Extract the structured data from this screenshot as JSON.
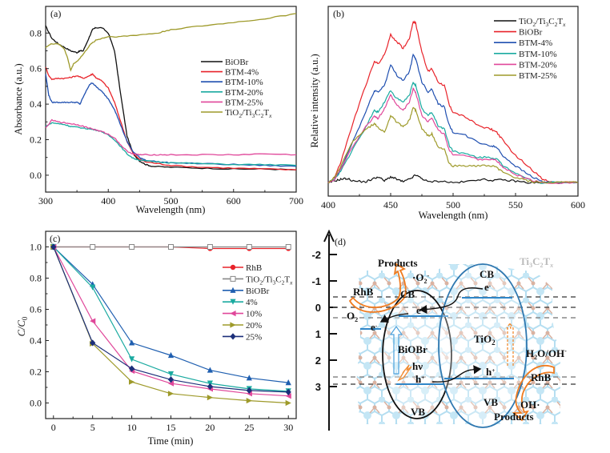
{
  "chart_data": [
    {
      "panel": "(a)",
      "type": "line",
      "xlabel": "Wavelength (nm)",
      "ylabel": "Absorbance (a.u.)",
      "xlim": [
        300,
        700
      ],
      "ylim": [
        -0.095,
        0.95
      ],
      "xticks": [
        300,
        400,
        500,
        600,
        700
      ],
      "yticks": [
        0.0,
        0.2,
        0.4,
        0.6,
        0.8
      ],
      "ytick_labels": [
        "0.0",
        "0.2",
        "0.4",
        "0.6",
        "0.8"
      ],
      "legend_position": "center-right",
      "series": [
        {
          "name": "BiOBr",
          "color": "#111111",
          "x": [
            300,
            310,
            320,
            330,
            340,
            350,
            355,
            360,
            370,
            375,
            380,
            390,
            400,
            410,
            420,
            430,
            440,
            450,
            460,
            470,
            500,
            550,
            600,
            650,
            700
          ],
          "y": [
            0.84,
            0.77,
            0.74,
            0.72,
            0.7,
            0.69,
            0.7,
            0.7,
            0.78,
            0.82,
            0.83,
            0.83,
            0.8,
            0.7,
            0.45,
            0.22,
            0.12,
            0.08,
            0.06,
            0.05,
            0.045,
            0.04,
            0.035,
            0.035,
            0.03
          ]
        },
        {
          "name": "BTM-4%",
          "color": "#e8232a",
          "x": [
            300,
            305,
            310,
            320,
            330,
            340,
            350,
            360,
            370,
            375,
            380,
            390,
            400,
            410,
            420,
            430,
            440,
            450,
            460,
            480,
            500,
            550,
            600,
            650,
            700
          ],
          "y": [
            0.61,
            0.56,
            0.54,
            0.545,
            0.545,
            0.55,
            0.56,
            0.545,
            0.56,
            0.57,
            0.55,
            0.53,
            0.49,
            0.41,
            0.3,
            0.19,
            0.12,
            0.09,
            0.075,
            0.065,
            0.055,
            0.045,
            0.04,
            0.035,
            0.03
          ]
        },
        {
          "name": "BTM-10%",
          "color": "#1f4fb0",
          "x": [
            300,
            305,
            310,
            320,
            330,
            340,
            350,
            355,
            360,
            370,
            375,
            380,
            390,
            400,
            410,
            420,
            430,
            440,
            450,
            460,
            480,
            500,
            550,
            600,
            650,
            700
          ],
          "y": [
            0.57,
            0.45,
            0.41,
            0.41,
            0.41,
            0.41,
            0.41,
            0.4,
            0.44,
            0.51,
            0.52,
            0.5,
            0.47,
            0.43,
            0.37,
            0.28,
            0.19,
            0.13,
            0.1,
            0.085,
            0.075,
            0.07,
            0.065,
            0.06,
            0.055,
            0.05
          ]
        },
        {
          "name": "BTM-20%",
          "color": "#1aaaa0",
          "x": [
            300,
            310,
            320,
            330,
            340,
            350,
            360,
            370,
            380,
            390,
            400,
            410,
            420,
            430,
            440,
            450,
            460,
            480,
            500,
            550,
            600,
            650,
            700
          ],
          "y": [
            0.275,
            0.295,
            0.29,
            0.285,
            0.275,
            0.27,
            0.265,
            0.26,
            0.255,
            0.245,
            0.225,
            0.2,
            0.16,
            0.12,
            0.095,
            0.085,
            0.08,
            0.075,
            0.07,
            0.065,
            0.06,
            0.06,
            0.055
          ]
        },
        {
          "name": "BTM-25%",
          "color": "#e0479a",
          "x": [
            300,
            310,
            320,
            330,
            340,
            350,
            360,
            370,
            380,
            390,
            400,
            410,
            420,
            430,
            440,
            450,
            460,
            480,
            500,
            550,
            600,
            650,
            700
          ],
          "y": [
            0.265,
            0.31,
            0.3,
            0.295,
            0.29,
            0.285,
            0.275,
            0.265,
            0.255,
            0.245,
            0.23,
            0.21,
            0.17,
            0.135,
            0.12,
            0.115,
            0.115,
            0.115,
            0.115,
            0.115,
            0.115,
            0.12,
            0.115
          ]
        },
        {
          "name": "TiO2/Ti3C2Tx",
          "color": "#9e9a2a",
          "x": [
            300,
            310,
            320,
            330,
            335,
            340,
            345,
            350,
            360,
            370,
            380,
            390,
            400,
            420,
            450,
            480,
            500,
            550,
            600,
            650,
            700
          ],
          "y": [
            0.72,
            0.74,
            0.74,
            0.71,
            0.66,
            0.59,
            0.63,
            0.64,
            0.68,
            0.73,
            0.76,
            0.77,
            0.78,
            0.78,
            0.79,
            0.8,
            0.82,
            0.84,
            0.86,
            0.88,
            0.91
          ]
        }
      ]
    },
    {
      "panel": "(b)",
      "type": "line",
      "xlabel": "Wavelength (nm)",
      "ylabel": "Relative intensity (a.u.)",
      "xlim": [
        400,
        600
      ],
      "ylim": [
        -0.08,
        1.05
      ],
      "xticks": [
        400,
        450,
        500,
        550,
        600
      ],
      "yticks": [],
      "legend_position": "top-right",
      "series": [
        {
          "name": "TiO2/Ti3C2Tx",
          "color": "#111111",
          "x": [
            400,
            405,
            410,
            415,
            420,
            430,
            435,
            440,
            445,
            450,
            455,
            460,
            465,
            470,
            475,
            480,
            490,
            500,
            510,
            520,
            530,
            540,
            550,
            560,
            570,
            580,
            590,
            600
          ],
          "y": [
            0.0,
            0.01,
            0.02,
            0.025,
            0.01,
            0.005,
            0.02,
            0.035,
            0.01,
            0.035,
            0.02,
            0.005,
            0.02,
            0.045,
            0.025,
            0.005,
            0.01,
            0.0,
            0.005,
            0.02,
            0.015,
            0.015,
            0.01,
            0.0,
            0.0,
            0.0,
            0.0,
            0.0
          ]
        },
        {
          "name": "BiOBr",
          "color": "#e8232a",
          "x": [
            400,
            405,
            410,
            420,
            430,
            437,
            440,
            445,
            450,
            455,
            460,
            465,
            468,
            470,
            475,
            480,
            483,
            488,
            493,
            497,
            500,
            510,
            520,
            530,
            535,
            540,
            550,
            560,
            570,
            575,
            580,
            600
          ],
          "y": [
            0.0,
            0.03,
            0.12,
            0.36,
            0.58,
            0.72,
            0.71,
            0.76,
            0.88,
            0.84,
            0.8,
            0.86,
            0.96,
            0.95,
            0.78,
            0.66,
            0.68,
            0.6,
            0.58,
            0.46,
            0.42,
            0.39,
            0.34,
            0.32,
            0.3,
            0.25,
            0.16,
            0.1,
            0.03,
            0.01,
            0.0,
            0.0
          ]
        },
        {
          "name": "BTM-4%",
          "color": "#1f4fb0",
          "x": [
            400,
            405,
            410,
            420,
            430,
            437,
            440,
            445,
            450,
            455,
            460,
            465,
            468,
            470,
            475,
            480,
            483,
            488,
            493,
            497,
            500,
            510,
            520,
            530,
            535,
            540,
            550,
            560,
            570,
            575,
            580,
            600
          ],
          "y": [
            0.0,
            0.02,
            0.08,
            0.25,
            0.42,
            0.55,
            0.54,
            0.58,
            0.7,
            0.64,
            0.61,
            0.66,
            0.76,
            0.74,
            0.6,
            0.54,
            0.56,
            0.47,
            0.45,
            0.34,
            0.3,
            0.28,
            0.24,
            0.22,
            0.21,
            0.16,
            0.1,
            0.05,
            0.01,
            0.0,
            0.0,
            0.0
          ]
        },
        {
          "name": "BTM-10%",
          "color": "#1aaaa0",
          "x": [
            400,
            405,
            410,
            420,
            430,
            437,
            440,
            445,
            450,
            455,
            460,
            465,
            468,
            470,
            475,
            480,
            483,
            488,
            493,
            497,
            500,
            510,
            520,
            530,
            535,
            540,
            550,
            560,
            570,
            580,
            600
          ],
          "y": [
            0.0,
            0.02,
            0.07,
            0.2,
            0.33,
            0.43,
            0.42,
            0.48,
            0.55,
            0.5,
            0.48,
            0.52,
            0.6,
            0.58,
            0.44,
            0.4,
            0.42,
            0.34,
            0.32,
            0.22,
            0.19,
            0.17,
            0.15,
            0.15,
            0.14,
            0.1,
            0.06,
            0.02,
            0.0,
            0.0,
            0.0
          ]
        },
        {
          "name": "BTM-20%",
          "color": "#e0479a",
          "x": [
            400,
            405,
            410,
            420,
            430,
            437,
            440,
            445,
            450,
            455,
            460,
            465,
            468,
            470,
            475,
            480,
            483,
            488,
            493,
            497,
            500,
            510,
            520,
            530,
            535,
            540,
            550,
            560,
            570,
            580,
            600
          ],
          "y": [
            0.0,
            0.02,
            0.08,
            0.22,
            0.33,
            0.4,
            0.38,
            0.44,
            0.52,
            0.46,
            0.43,
            0.48,
            0.56,
            0.54,
            0.4,
            0.36,
            0.39,
            0.31,
            0.29,
            0.19,
            0.17,
            0.16,
            0.14,
            0.14,
            0.13,
            0.09,
            0.05,
            0.02,
            0.0,
            0.0,
            0.0
          ]
        },
        {
          "name": "BTM-25%",
          "color": "#9e9a2a",
          "x": [
            400,
            405,
            410,
            420,
            430,
            437,
            440,
            445,
            450,
            455,
            460,
            465,
            468,
            470,
            475,
            480,
            483,
            488,
            493,
            497,
            500,
            510,
            520,
            530,
            535,
            540,
            550,
            560,
            570,
            580,
            600
          ],
          "y": [
            0.0,
            0.03,
            0.1,
            0.25,
            0.32,
            0.35,
            0.33,
            0.3,
            0.4,
            0.36,
            0.33,
            0.37,
            0.45,
            0.43,
            0.32,
            0.28,
            0.29,
            0.21,
            0.2,
            0.11,
            0.1,
            0.1,
            0.1,
            0.1,
            0.09,
            0.06,
            0.03,
            0.01,
            0.0,
            0.0,
            0.0
          ]
        }
      ]
    },
    {
      "panel": "(c)",
      "type": "line",
      "xlabel": "Time (min)",
      "ylabel": "C/C0",
      "xlim": [
        -1,
        31
      ],
      "ylim": [
        -0.1,
        1.1
      ],
      "xticks": [
        0,
        5,
        10,
        15,
        20,
        25,
        30
      ],
      "yticks": [
        0.0,
        0.2,
        0.4,
        0.6,
        0.8,
        1.0
      ],
      "ytick_labels": [
        "0.0",
        "0.2",
        "0.4",
        "0.6",
        "0.8",
        "1.0"
      ],
      "legend_position": "center-right",
      "x": [
        0,
        5,
        10,
        15,
        20,
        25,
        30
      ],
      "series": [
        {
          "name": "RhB",
          "color": "#e8232a",
          "marker": "circle",
          "values": [
            1.0,
            1.0,
            1.0,
            1.0,
            0.99,
            0.99,
            0.99
          ]
        },
        {
          "name": "TiO2/Ti3C2Tx",
          "color": "#888888",
          "marker": "square-open",
          "values": [
            1.0,
            1.0,
            1.0,
            1.0,
            1.0,
            1.0,
            1.0
          ]
        },
        {
          "name": "BiOBr",
          "color": "#1f5fb0",
          "marker": "triangle-up",
          "values": [
            1.0,
            0.76,
            0.385,
            0.305,
            0.21,
            0.16,
            0.13
          ]
        },
        {
          "name": "4%",
          "color": "#1aaaa0",
          "marker": "triangle-down",
          "values": [
            1.0,
            0.74,
            0.28,
            0.185,
            0.125,
            0.09,
            0.075
          ]
        },
        {
          "name": "10%",
          "color": "#e0479a",
          "marker": "triangle-left",
          "values": [
            1.0,
            0.525,
            0.205,
            0.125,
            0.09,
            0.06,
            0.045
          ]
        },
        {
          "name": "20%",
          "color": "#9e9a2a",
          "marker": "triangle-right",
          "values": [
            1.0,
            0.38,
            0.135,
            0.06,
            0.035,
            0.015,
            0.0
          ]
        },
        {
          "name": "25%",
          "color": "#1c2f7a",
          "marker": "diamond",
          "values": [
            1.0,
            0.385,
            0.22,
            0.15,
            0.105,
            0.08,
            0.07
          ]
        }
      ]
    }
  ],
  "panels": {
    "a": {
      "label": "(a)",
      "xlabel": "Wavelength (nm)",
      "ylabel": "Absorbance (a.u.)",
      "legend": [
        "BiOBr",
        "BTM-4%",
        "BTM-10%",
        "BTM-20%",
        "BTM-25%",
        "TiO2/Ti3C2Tx"
      ]
    },
    "b": {
      "label": "(b)",
      "xlabel": "Wavelength (nm)",
      "ylabel": "Relative intensity (a.u.)",
      "legend": [
        "TiO2/Ti3C2Tx",
        "BiOBr",
        "BTM-4%",
        "BTM-10%",
        "BTM-20%",
        "BTM-25%"
      ]
    },
    "c": {
      "label": "(c)",
      "xlabel": "Time (min)",
      "ylabel": "C/C0",
      "legend": [
        "RhB",
        "TiO2/Ti3C2Tx",
        "BiOBr",
        "4%",
        "10%",
        "20%",
        "25%"
      ]
    },
    "d": {
      "label": "(d)",
      "axis_ticks": [
        "-2",
        "-1",
        "0",
        "1",
        "2",
        "3"
      ],
      "substrate_label": "Ti3C2Tx",
      "left_semiconductor": "BiOBr",
      "right_semiconductor": "TiO2",
      "texts": {
        "products_top": "Products",
        "superoxide": "·O2-",
        "rhb_left": "RhB",
        "cb_left": "CB",
        "cb_right": "CB",
        "o2": "O2",
        "e_minus": "e-",
        "hv": "hν",
        "h_plus": "h+",
        "vb_left": "VB",
        "vb_right": "VB",
        "h2o_oh": "H2O/OH-",
        "rhb_right": "RhB",
        "oh_radical": "OH·",
        "products_bottom": "Products"
      }
    }
  }
}
